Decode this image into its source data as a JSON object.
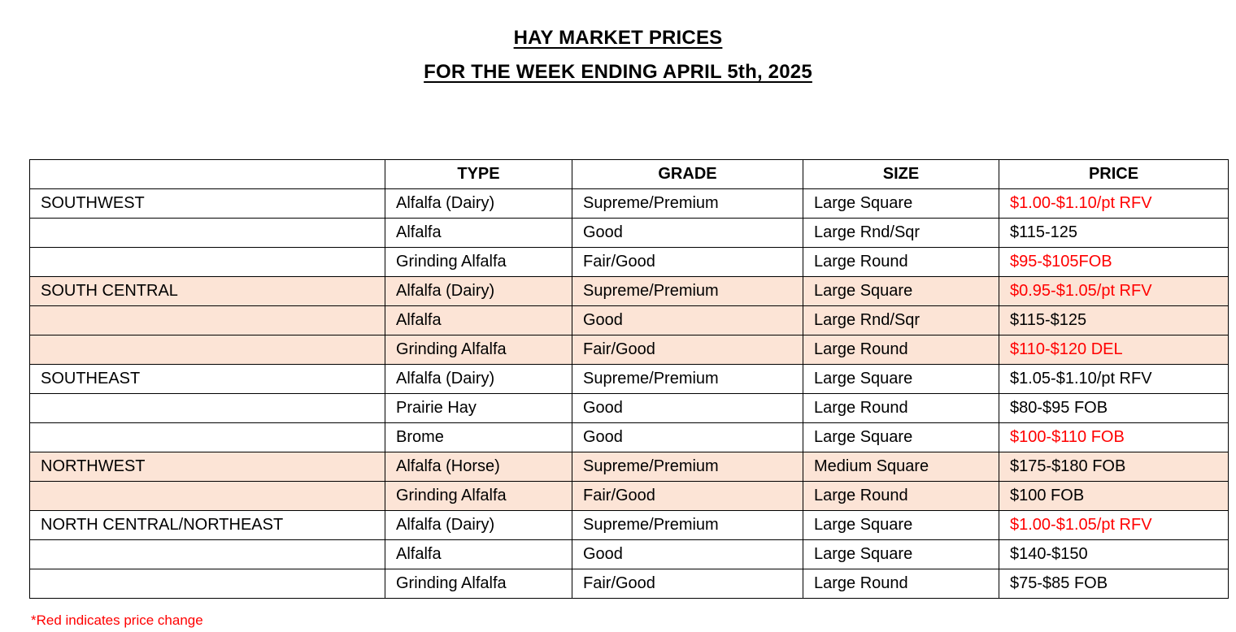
{
  "title": {
    "line1": "HAY MARKET PRICES",
    "line2": "FOR THE WEEK ENDING APRIL 5th, 2025"
  },
  "table": {
    "headers": {
      "region": "",
      "type": "TYPE",
      "grade": "GRADE",
      "size": "SIZE",
      "price": "PRICE"
    },
    "rows": [
      {
        "region": "SOUTHWEST",
        "type": "Alfalfa (Dairy)",
        "grade": "Supreme/Premium",
        "size": "Large Square",
        "price": "$1.00-$1.10/pt RFV",
        "price_red": true,
        "shaded": false
      },
      {
        "region": "",
        "type": "Alfalfa",
        "grade": "Good",
        "size": "Large Rnd/Sqr",
        "price": "$115-125",
        "price_red": false,
        "shaded": false
      },
      {
        "region": "",
        "type": "Grinding Alfalfa",
        "grade": "Fair/Good",
        "size": "Large Round",
        "price": "$95-$105FOB",
        "price_red": true,
        "shaded": false
      },
      {
        "region": "SOUTH CENTRAL",
        "type": "Alfalfa (Dairy)",
        "grade": "Supreme/Premium",
        "size": "Large Square",
        "price": "$0.95-$1.05/pt RFV",
        "price_red": true,
        "shaded": true
      },
      {
        "region": "",
        "type": "Alfalfa",
        "grade": "Good",
        "size": "Large Rnd/Sqr",
        "price": "$115-$125",
        "price_red": false,
        "shaded": true
      },
      {
        "region": "",
        "type": "Grinding Alfalfa",
        "grade": "Fair/Good",
        "size": "Large Round",
        "price": "$110-$120 DEL",
        "price_red": true,
        "shaded": true
      },
      {
        "region": "SOUTHEAST",
        "type": "Alfalfa (Dairy)",
        "grade": "Supreme/Premium",
        "size": "Large Square",
        "price": "$1.05-$1.10/pt RFV",
        "price_red": false,
        "shaded": false
      },
      {
        "region": "",
        "type": "Prairie Hay",
        "grade": "Good",
        "size": "Large Round",
        "price": "$80-$95 FOB",
        "price_red": false,
        "shaded": false
      },
      {
        "region": "",
        "type": "Brome",
        "grade": "Good",
        "size": "Large Square",
        "price": "$100-$110 FOB",
        "price_red": true,
        "shaded": false
      },
      {
        "region": "NORTHWEST",
        "type": "Alfalfa (Horse)",
        "grade": "Supreme/Premium",
        "size": "Medium Square",
        "price": "$175-$180 FOB",
        "price_red": false,
        "shaded": true
      },
      {
        "region": "",
        "type": "Grinding Alfalfa",
        "grade": "Fair/Good",
        "size": "Large Round",
        "price": "$100 FOB",
        "price_red": false,
        "shaded": true
      },
      {
        "region": "NORTH CENTRAL/NORTHEAST",
        "type": "Alfalfa (Dairy)",
        "grade": "Supreme/Premium",
        "size": "Large Square",
        "price": "$1.00-$1.05/pt RFV",
        "price_red": true,
        "shaded": false
      },
      {
        "region": "",
        "type": "Alfalfa",
        "grade": "Good",
        "size": "Large Square",
        "price": "$140-$150",
        "price_red": false,
        "shaded": false
      },
      {
        "region": "",
        "type": "Grinding Alfalfa",
        "grade": "Fair/Good",
        "size": "Large Round",
        "price": "$75-$85 FOB",
        "price_red": false,
        "shaded": false
      }
    ]
  },
  "footnote": "*Red indicates price change",
  "colors": {
    "shaded_row_bg": "#fce4d6",
    "price_change_red": "#ff0000",
    "border": "#000000",
    "text": "#000000",
    "background": "#ffffff"
  }
}
